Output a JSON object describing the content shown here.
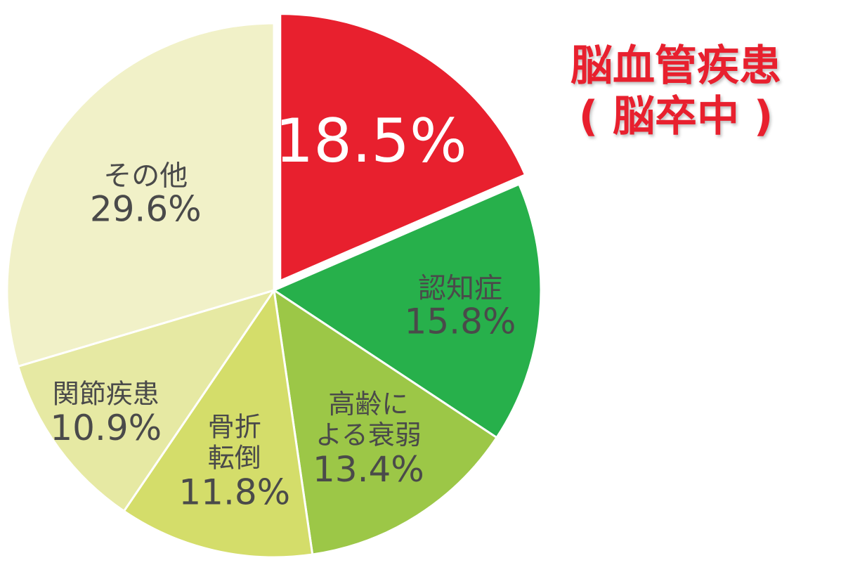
{
  "chart_data": {
    "type": "pie",
    "title": "",
    "start_angle_deg": 0,
    "direction": "clockwise",
    "slices": [
      {
        "label": "脳血管疾患（脳卒中）",
        "value": 18.5,
        "value_label": "18.5%",
        "color": "#e8202e",
        "exploded": true,
        "label_lines": []
      },
      {
        "label": "認知症",
        "value": 15.8,
        "value_label": "15.8%",
        "color": "#27b04b",
        "exploded": false,
        "label_lines": [
          "認知症"
        ]
      },
      {
        "label": "高齢による衰弱",
        "value": 13.4,
        "value_label": "13.4%",
        "color": "#9cc747",
        "exploded": false,
        "label_lines": [
          "高齢に",
          "よる衰弱"
        ]
      },
      {
        "label": "骨折転倒",
        "value": 11.8,
        "value_label": "11.8%",
        "color": "#d4dd6a",
        "exploded": false,
        "label_lines": [
          "骨折",
          "転倒"
        ]
      },
      {
        "label": "関節疾患",
        "value": 10.9,
        "value_label": "10.9%",
        "color": "#e6e9a3",
        "exploded": false,
        "label_lines": [
          "関節疾患"
        ]
      },
      {
        "label": "その他",
        "value": 29.6,
        "value_label": "29.6%",
        "color": "#f1f1c8",
        "exploded": false,
        "label_lines": [
          "その他"
        ]
      }
    ],
    "legend": "none"
  },
  "callout": {
    "line1": "脳血管疾患",
    "line2": "( 脳卒中 )",
    "color": "#e8202e"
  },
  "colors": {
    "label_text": "#4a4a4a",
    "highlight_text": "#ffffff"
  }
}
